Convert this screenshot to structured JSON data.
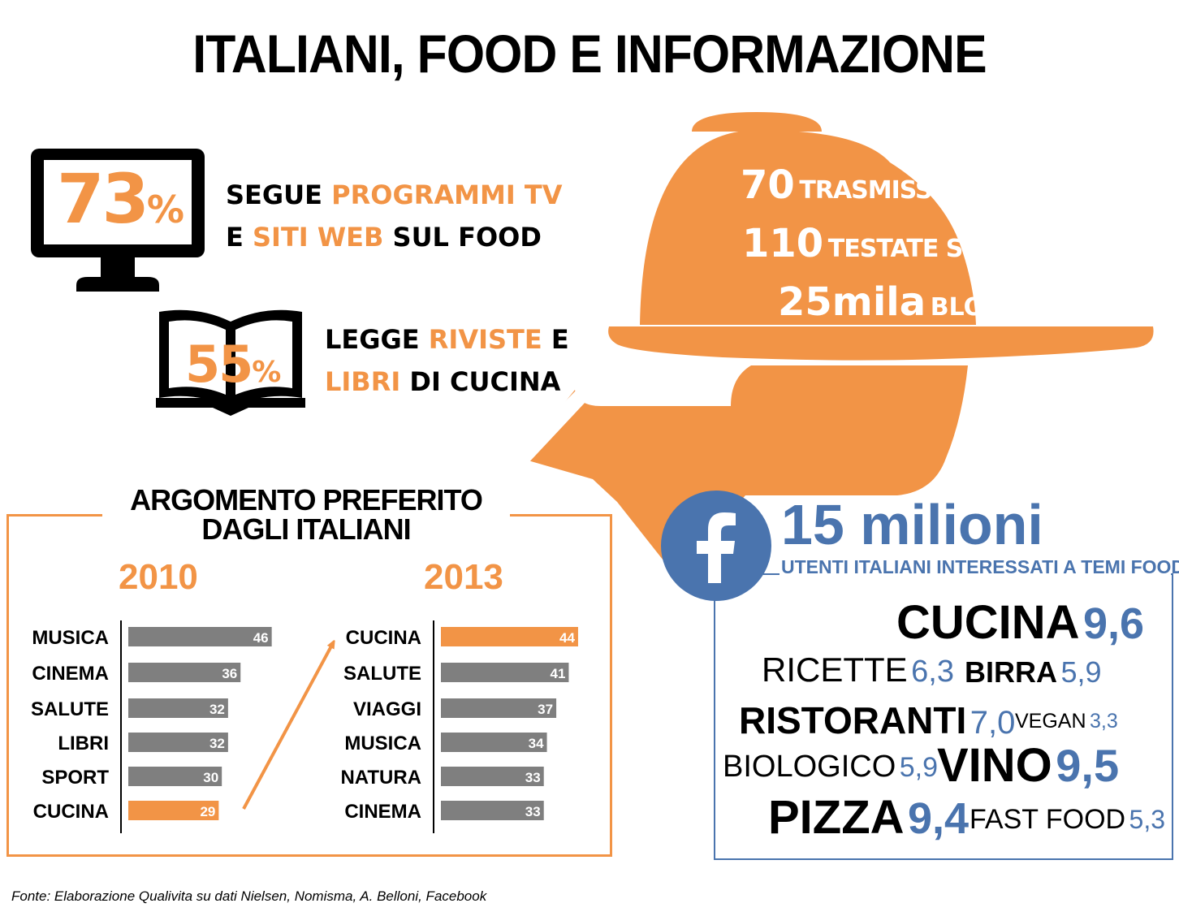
{
  "title": "ITALIANI, FOOD E INFORMAZIONE",
  "colors": {
    "orange": "#F29446",
    "gray": "#7F7F7F",
    "blue": "#4A74AE",
    "black": "#000000"
  },
  "stats": {
    "tv": {
      "icon": "monitor-icon",
      "number": "73",
      "unit": "%",
      "line1_a": "SEGUE ",
      "line1_b": "PROGRAMMI TV",
      "line2_a": "E ",
      "line2_b": "SITI WEB",
      "line2_c": " SUL FOOD"
    },
    "books": {
      "icon": "open-book-icon",
      "number": "55",
      "unit": "%",
      "line1_a": "LEGGE ",
      "line1_b": "RIVISTE",
      "line1_c": " E",
      "line2_a": "LIBRI",
      "line2_b": " DI CUCINA"
    }
  },
  "media": {
    "icon": "serving-cloche-icon",
    "tv": {
      "num": "70",
      "label": "TRASMISSIONI TV"
    },
    "press": {
      "num": "110",
      "label": "TESTATE STAMPA"
    },
    "blog": {
      "num": "25mila",
      "label": "BLOG"
    }
  },
  "chart_data": {
    "type": "bar",
    "title": "ARGOMENTO PREFERITO DAGLI ITALIANI",
    "title_line1": "ARGOMENTO PREFERITO",
    "title_line2": "DAGLI ITALIANI",
    "xlim": [
      0,
      50
    ],
    "panels": [
      {
        "year": "2010",
        "categories": [
          "MUSICA",
          "CINEMA",
          "SALUTE",
          "LIBRI",
          "SPORT",
          "CUCINA"
        ],
        "values": [
          46,
          36,
          32,
          32,
          30,
          29
        ],
        "highlight": "CUCINA"
      },
      {
        "year": "2013",
        "categories": [
          "CUCINA",
          "SALUTE",
          "VIAGGI",
          "MUSICA",
          "NATURA",
          "CINEMA"
        ],
        "values": [
          44,
          41,
          37,
          34,
          33,
          33
        ],
        "highlight": "CUCINA"
      }
    ]
  },
  "facebook": {
    "icon": "facebook-icon",
    "headline": "15 milioni",
    "subtitle": "UTENTI ITALIANI INTERESSATI A TEMI FOOD",
    "topics": [
      {
        "word": "CUCINA",
        "value": "9,6"
      },
      {
        "word": "RICETTE",
        "value": "6,3"
      },
      {
        "word": "BIRRA",
        "value": "5,9"
      },
      {
        "word": "RISTORANTI",
        "value": "7,0"
      },
      {
        "word": "VEGAN",
        "value": "3,3"
      },
      {
        "word": "BIOLOGICO",
        "value": "5,9"
      },
      {
        "word": "VINO",
        "value": "9,5"
      },
      {
        "word": "PIZZA",
        "value": "9,4"
      },
      {
        "word": "FAST FOOD",
        "value": "5,3"
      }
    ]
  },
  "source": "Fonte: Elaborazione Qualivita su dati Nielsen, Nomisma, A. Belloni, Facebook"
}
